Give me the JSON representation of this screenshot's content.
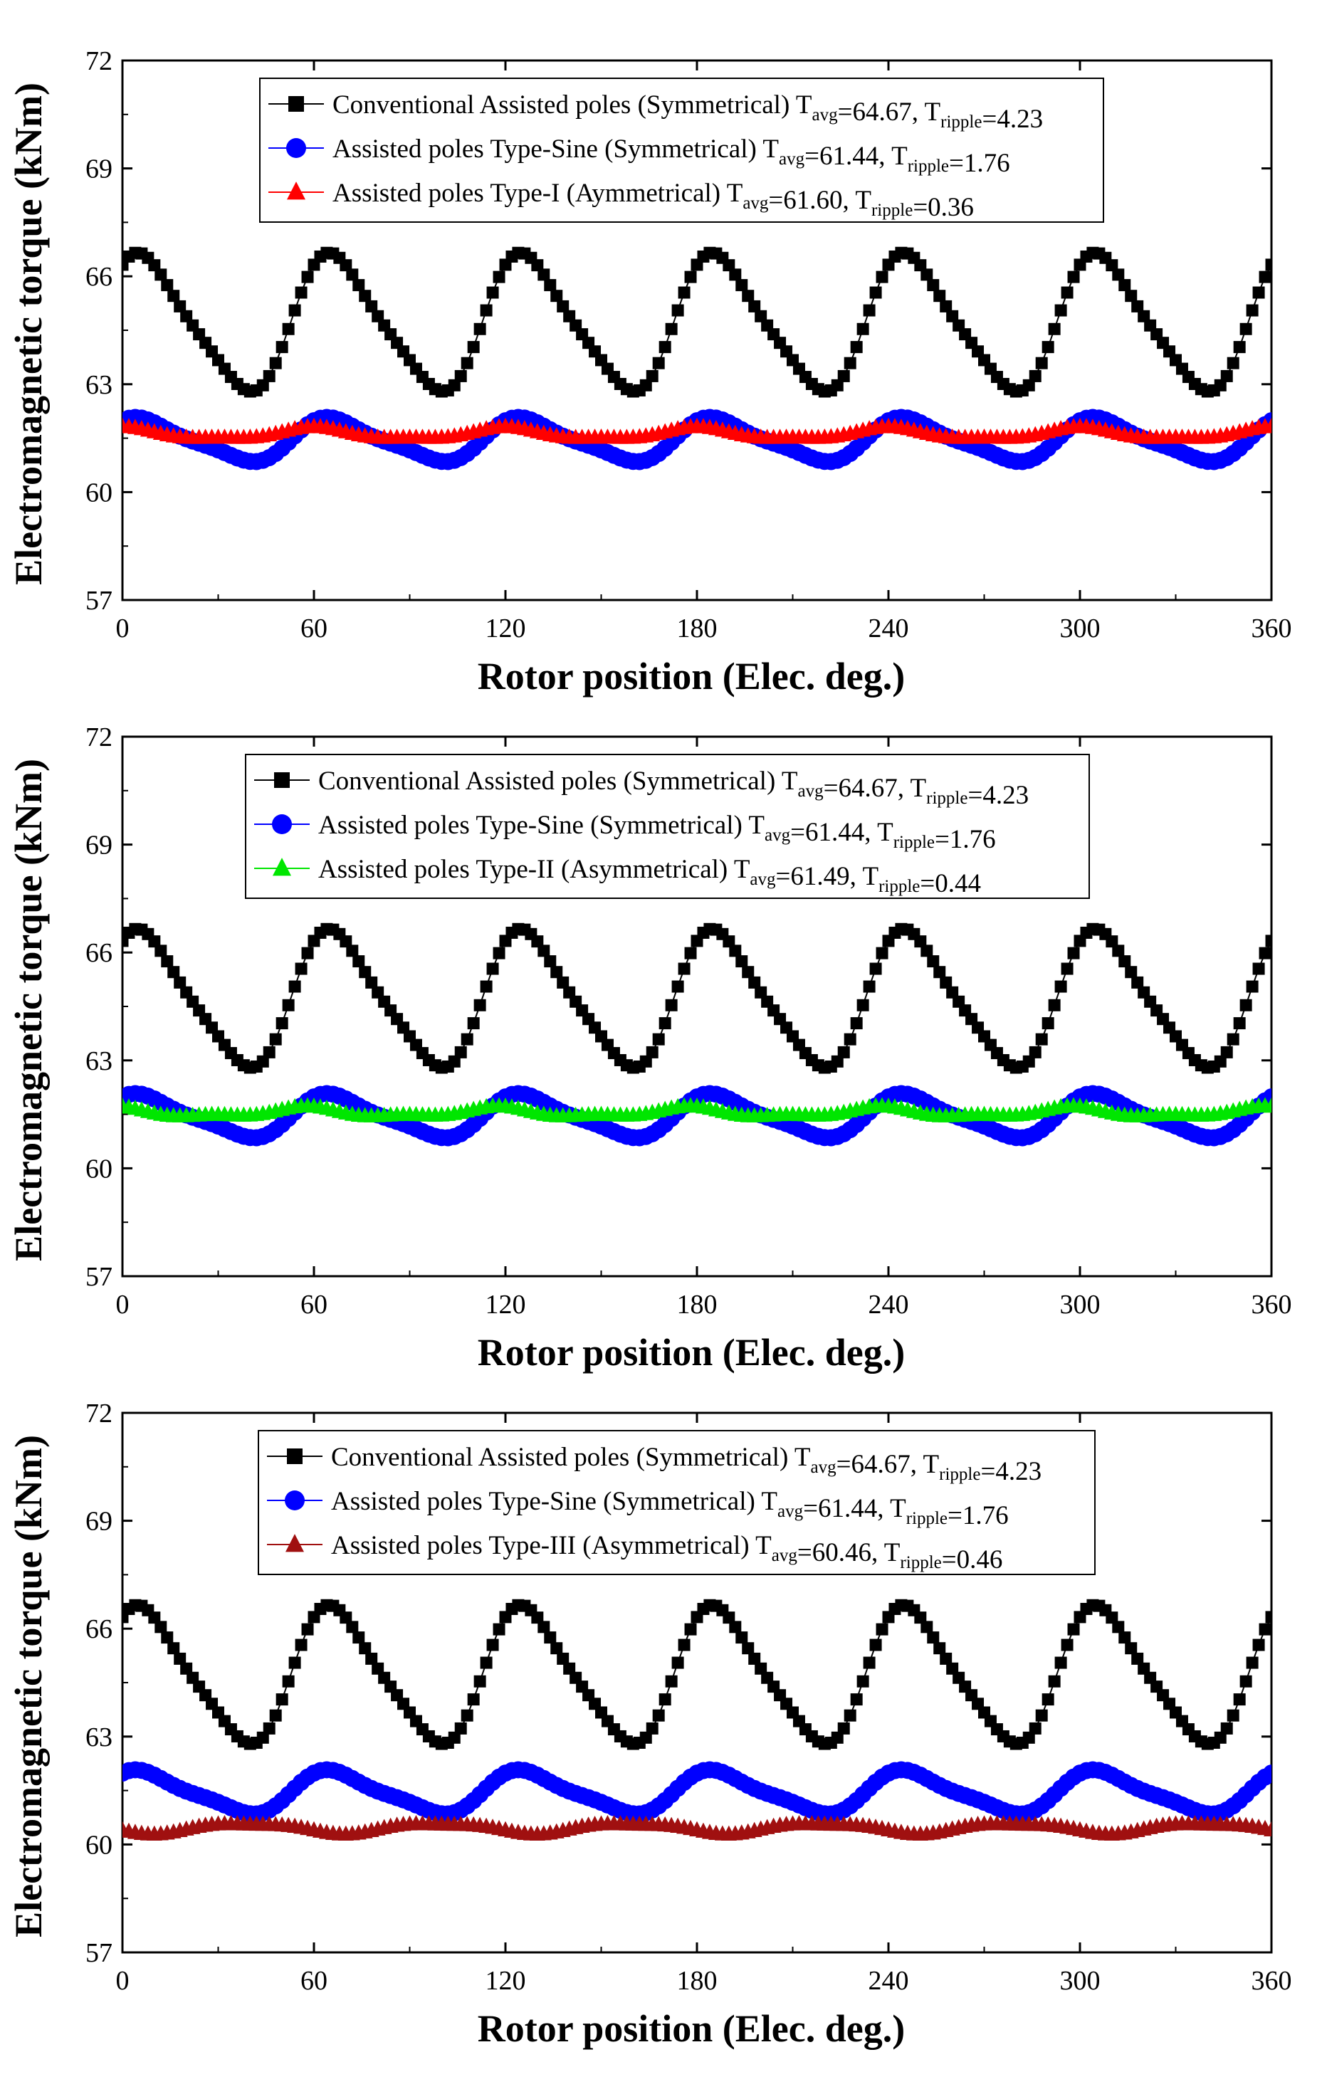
{
  "chart_data": [
    {
      "type": "line",
      "xlabel": "Rotor position (Elec. deg.)",
      "ylabel": "Electromagnetic torque (kNm)",
      "xlim": [
        0,
        360
      ],
      "ylim": [
        57,
        72
      ],
      "xticks": [
        "0",
        "60",
        "120",
        "180",
        "240",
        "300",
        "360"
      ],
      "yticks": [
        "57",
        "60",
        "63",
        "66",
        "69",
        "72"
      ],
      "grid": false,
      "legend_position": "top-center",
      "series": [
        {
          "name": "Conventional Assisted poles (Symmetrical)",
          "label_main": "Conventional Assisted poles (Symmetrical) T",
          "label_sub1": "avg",
          "label_mid": "=64.67, T",
          "label_sub2": "ripple",
          "label_end": "=4.23",
          "t_avg": 64.67,
          "t_ripple": 4.23,
          "color": "#000000",
          "marker": "square",
          "model": {
            "mean": 64.67,
            "a_60": 1.83,
            "phase_60": -0.76,
            "a_30": 0.33,
            "phase_30": -0.16
          }
        },
        {
          "name": "Assisted poles Type-Sine (Symmetrical)",
          "label_main": "Assisted poles Type-Sine (Symmetrical) T",
          "label_sub1": "avg",
          "label_mid": "=61.44, T",
          "label_sub2": "ripple",
          "label_end": "=1.76",
          "t_avg": 61.44,
          "t_ripple": 1.76,
          "color": "#0000ff",
          "marker": "circle",
          "model": {
            "mean": 61.44,
            "a_60": 0.56,
            "phase_60": -0.76,
            "a_30": 0.14,
            "phase_30": -0.16
          }
        },
        {
          "name": "Assisted poles Type-I (Aymmetrical)",
          "label_main": "Assisted poles Type-I (Aymmetrical) T",
          "label_sub1": "avg",
          "label_mid": "=61.60, T",
          "label_sub2": "ripple",
          "label_end": "=0.36",
          "t_avg": 61.6,
          "t_ripple": 0.36,
          "color": "#ff0000",
          "marker": "triangle",
          "model": {
            "mean": 61.62,
            "a_60": 0.15,
            "phase_60": 0.0,
            "a_30": 0.05,
            "phase_30": 0.0
          }
        }
      ]
    },
    {
      "type": "line",
      "xlabel": "Rotor position (Elec. deg.)",
      "ylabel": "Electromagnetic torque (kNm)",
      "xlim": [
        0,
        360
      ],
      "ylim": [
        57,
        72
      ],
      "xticks": [
        "0",
        "60",
        "120",
        "180",
        "240",
        "300",
        "360"
      ],
      "yticks": [
        "57",
        "60",
        "63",
        "66",
        "69",
        "72"
      ],
      "grid": false,
      "legend_position": "top-center",
      "series": [
        {
          "name": "Conventional Assisted poles (Symmetrical)",
          "label_main": "Conventional Assisted poles (Symmetrical) T",
          "label_sub1": "avg",
          "label_mid": "=64.67, T",
          "label_sub2": "ripple",
          "label_end": "=4.23",
          "t_avg": 64.67,
          "t_ripple": 4.23,
          "color": "#000000",
          "marker": "square",
          "model": {
            "mean": 64.67,
            "a_60": 1.83,
            "phase_60": -0.76,
            "a_30": 0.33,
            "phase_30": -0.16
          }
        },
        {
          "name": "Assisted poles Type-Sine (Symmetrical)",
          "label_main": "Assisted poles Type-Sine (Symmetrical) T",
          "label_sub1": "avg",
          "label_mid": "=61.44, T",
          "label_sub2": "ripple",
          "label_end": "=1.76",
          "t_avg": 61.44,
          "t_ripple": 1.76,
          "color": "#0000ff",
          "marker": "circle",
          "model": {
            "mean": 61.44,
            "a_60": 0.56,
            "phase_60": -0.76,
            "a_30": 0.14,
            "phase_30": -0.16
          }
        },
        {
          "name": "Assisted poles Type-II (Asymmetrical)",
          "label_main": "Assisted poles Type-II (Asymmetrical) T",
          "label_sub1": "avg",
          "label_mid": "=61.49, T",
          "label_sub2": "ripple",
          "label_end": "=0.44",
          "t_avg": 61.49,
          "t_ripple": 0.44,
          "color": "#00e600",
          "marker": "triangle",
          "model": {
            "mean": 61.55,
            "a_60": 0.12,
            "phase_60": 0.3,
            "a_30": 0.06,
            "phase_30": 0.4
          }
        }
      ]
    },
    {
      "type": "line",
      "xlabel": "Rotor position (Elec. deg.)",
      "ylabel": "Electromagnetic torque (kNm)",
      "xlim": [
        0,
        360
      ],
      "ylim": [
        57,
        72
      ],
      "xticks": [
        "0",
        "60",
        "120",
        "180",
        "240",
        "300",
        "360"
      ],
      "yticks": [
        "57",
        "60",
        "63",
        "66",
        "69",
        "72"
      ],
      "grid": false,
      "legend_position": "top-center",
      "series": [
        {
          "name": "Conventional Assisted poles (Symmetrical)",
          "label_main": "Conventional Assisted poles (Symmetrical) T",
          "label_sub1": "avg",
          "label_mid": "=64.67, T",
          "label_sub2": "ripple",
          "label_end": "=4.23",
          "t_avg": 64.67,
          "t_ripple": 4.23,
          "color": "#000000",
          "marker": "square",
          "model": {
            "mean": 64.67,
            "a_60": 1.83,
            "phase_60": -0.76,
            "a_30": 0.33,
            "phase_30": -0.16
          }
        },
        {
          "name": "Assisted poles Type-Sine (Symmetrical)",
          "label_main": "Assisted poles Type-Sine (Symmetrical) T",
          "label_sub1": "avg",
          "label_mid": "=61.44, T",
          "label_sub2": "ripple",
          "label_end": "=1.76",
          "t_avg": 61.44,
          "t_ripple": 1.76,
          "color": "#0000ff",
          "marker": "circle",
          "model": {
            "mean": 61.44,
            "a_60": 0.56,
            "phase_60": -0.76,
            "a_30": 0.14,
            "phase_30": -0.16
          }
        },
        {
          "name": "Assisted poles Type-III (Asymmetrical)",
          "label_main": "Assisted poles Type-III (Asymmetrical) T",
          "label_sub1": "avg",
          "label_mid": "=60.46, T",
          "label_sub2": "ripple",
          "label_end": "=0.46",
          "t_avg": 60.46,
          "t_ripple": 0.46,
          "color": "#a01010",
          "marker": "triangle",
          "model": {
            "mean": 60.46,
            "a_60": 0.14,
            "phase_60": 2.2,
            "a_30": 0.04,
            "phase_30": 1.0
          }
        }
      ]
    }
  ]
}
